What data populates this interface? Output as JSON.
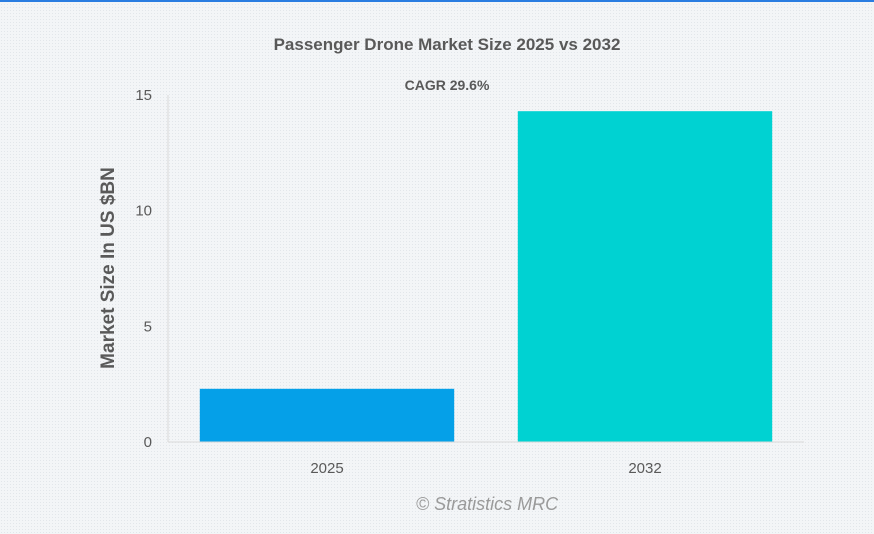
{
  "chart_data": {
    "type": "bar",
    "title": "Passenger Drone Market Size 2025 vs 2032",
    "subtitle": "CAGR 29.6%",
    "xlabel": "",
    "ylabel": "Market Size In US $BN",
    "categories": [
      "2025",
      "2032"
    ],
    "values": [
      2.3,
      14.3
    ],
    "bar_colors": [
      "#05a0e8",
      "#00d2d2"
    ],
    "ylim": [
      0,
      15
    ],
    "yticks": [
      0,
      5,
      10,
      15
    ],
    "grid": false,
    "legend": "none"
  },
  "watermark": "© Stratistics MRC",
  "colors": {
    "accent_rule": "#2a7de1",
    "axis": "#d9d9d9",
    "text": "#595959"
  }
}
